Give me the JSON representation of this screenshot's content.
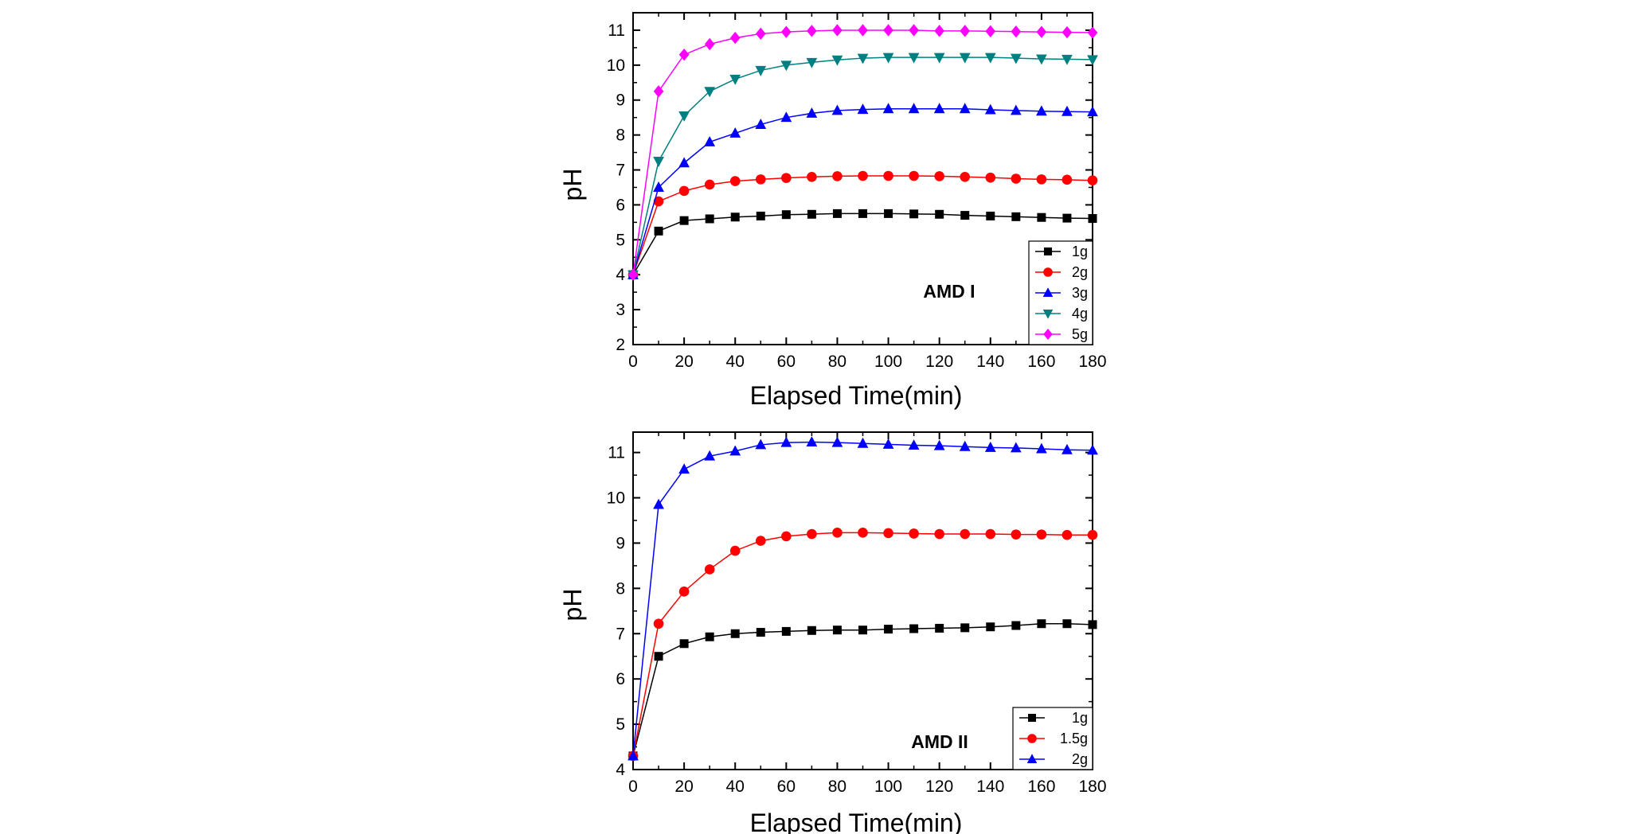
{
  "chart_data": [
    {
      "type": "line",
      "panel_label": "AMD I",
      "xlabel": "Elapsed Time(min)",
      "ylabel": "pH",
      "xlim": [
        0,
        180
      ],
      "ylim": [
        2,
        11.5
      ],
      "xticks": [
        0,
        20,
        40,
        60,
        80,
        100,
        120,
        140,
        160,
        180
      ],
      "yticks": [
        2,
        3,
        4,
        5,
        6,
        7,
        8,
        9,
        10,
        11
      ],
      "legend_position": "bottom-right",
      "x": [
        0,
        10,
        20,
        30,
        40,
        50,
        60,
        70,
        80,
        90,
        100,
        110,
        120,
        130,
        140,
        150,
        160,
        170,
        180
      ],
      "series": [
        {
          "name": "1g",
          "marker": "square",
          "color": "#000000",
          "values": [
            4.0,
            5.25,
            5.55,
            5.6,
            5.65,
            5.68,
            5.72,
            5.73,
            5.75,
            5.75,
            5.75,
            5.74,
            5.73,
            5.7,
            5.68,
            5.66,
            5.64,
            5.62,
            5.61
          ]
        },
        {
          "name": "2g",
          "marker": "circle",
          "color": "#ff0000",
          "values": [
            4.0,
            6.1,
            6.4,
            6.58,
            6.68,
            6.73,
            6.77,
            6.8,
            6.82,
            6.83,
            6.83,
            6.83,
            6.82,
            6.8,
            6.78,
            6.75,
            6.73,
            6.72,
            6.7
          ]
        },
        {
          "name": "3g",
          "marker": "triangle-up",
          "color": "#0000ff",
          "values": [
            4.0,
            6.5,
            7.2,
            7.8,
            8.05,
            8.3,
            8.5,
            8.62,
            8.7,
            8.73,
            8.75,
            8.75,
            8.75,
            8.75,
            8.72,
            8.7,
            8.68,
            8.67,
            8.66
          ]
        },
        {
          "name": "4g",
          "marker": "triangle-down",
          "color": "#008080",
          "values": [
            4.0,
            7.25,
            8.55,
            9.25,
            9.6,
            9.85,
            10.0,
            10.08,
            10.15,
            10.2,
            10.22,
            10.22,
            10.22,
            10.22,
            10.22,
            10.2,
            10.18,
            10.17,
            10.16
          ]
        },
        {
          "name": "5g",
          "marker": "diamond",
          "color": "#ff00ff",
          "values": [
            4.0,
            9.25,
            10.3,
            10.6,
            10.78,
            10.9,
            10.95,
            10.98,
            11.0,
            11.0,
            11.0,
            11.0,
            10.98,
            10.98,
            10.97,
            10.96,
            10.95,
            10.94,
            10.93
          ]
        }
      ]
    },
    {
      "type": "line",
      "panel_label": "AMD II",
      "xlabel": "Elapsed Time(min)",
      "ylabel": "pH",
      "xlim": [
        0,
        180
      ],
      "ylim": [
        4,
        11.45
      ],
      "xticks": [
        0,
        20,
        40,
        60,
        80,
        100,
        120,
        140,
        160,
        180
      ],
      "yticks": [
        4,
        5,
        6,
        7,
        8,
        9,
        10,
        11
      ],
      "legend_position": "bottom-right",
      "x": [
        0,
        10,
        20,
        30,
        40,
        50,
        60,
        70,
        80,
        90,
        100,
        110,
        120,
        130,
        140,
        150,
        160,
        170,
        180
      ],
      "series": [
        {
          "name": "1g",
          "marker": "square",
          "color": "#000000",
          "values": [
            4.3,
            6.5,
            6.78,
            6.93,
            7.0,
            7.03,
            7.05,
            7.07,
            7.08,
            7.08,
            7.1,
            7.11,
            7.12,
            7.13,
            7.15,
            7.18,
            7.22,
            7.22,
            7.2
          ]
        },
        {
          "name": "1.5g",
          "marker": "circle",
          "color": "#ff0000",
          "values": [
            4.3,
            7.22,
            7.93,
            8.42,
            8.83,
            9.05,
            9.15,
            9.2,
            9.23,
            9.23,
            9.22,
            9.21,
            9.2,
            9.2,
            9.2,
            9.19,
            9.19,
            9.18,
            9.18
          ]
        },
        {
          "name": "2g",
          "marker": "triangle-up",
          "color": "#0000ff",
          "values": [
            4.3,
            9.85,
            10.63,
            10.92,
            11.03,
            11.17,
            11.22,
            11.23,
            11.22,
            11.2,
            11.18,
            11.16,
            11.15,
            11.13,
            11.11,
            11.1,
            11.08,
            11.06,
            11.05
          ]
        }
      ]
    }
  ]
}
